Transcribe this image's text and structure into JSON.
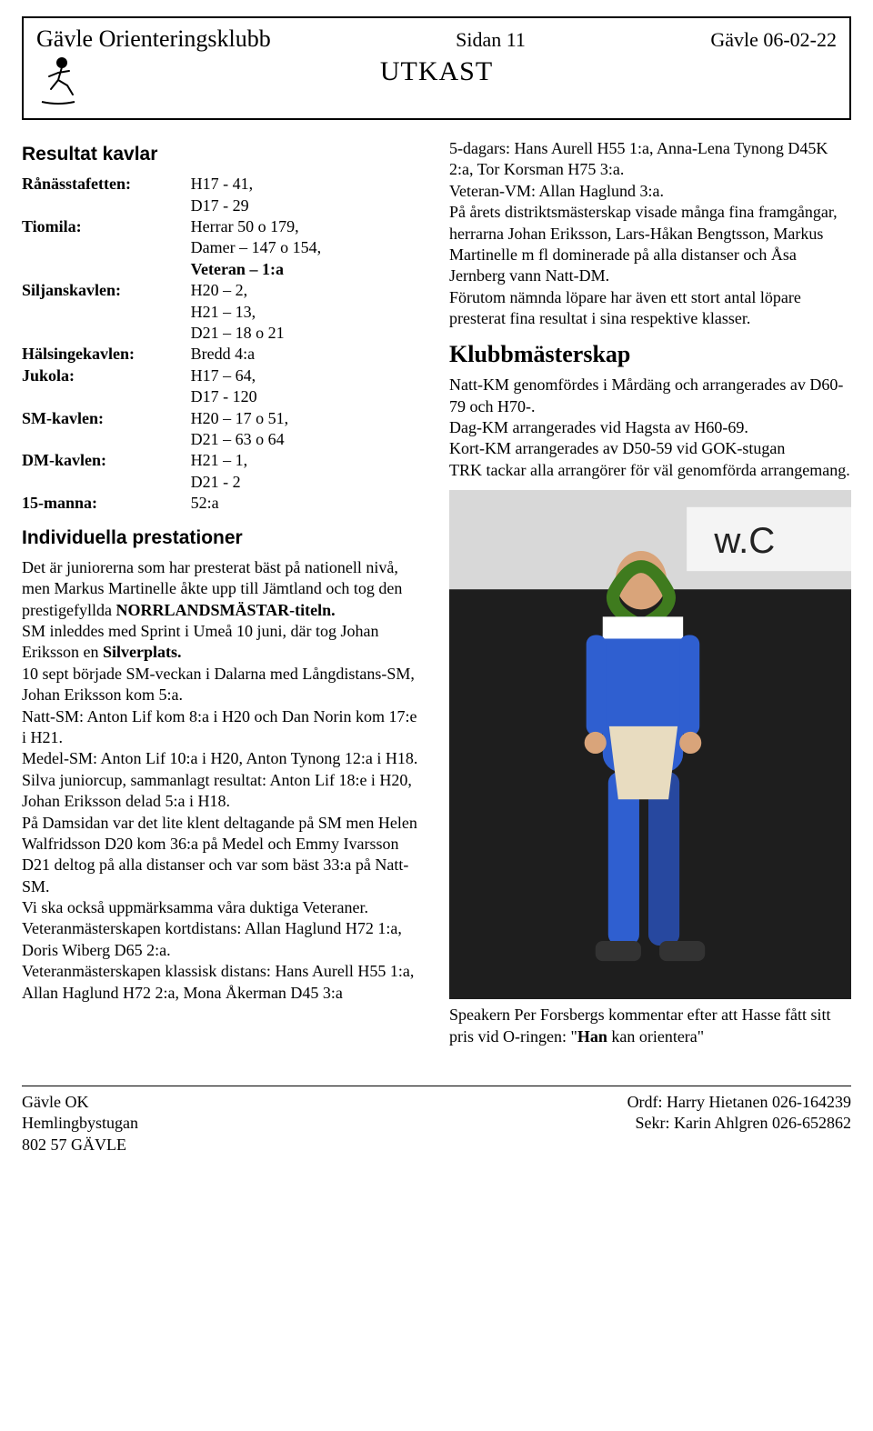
{
  "header": {
    "club": "Gävle Orienteringsklubb",
    "page": "Sidan 11",
    "date_place": "Gävle 06-02-22",
    "title": "UTKAST"
  },
  "left": {
    "section1_title": "Resultat kavlar",
    "rows": [
      {
        "label": "Rånässtafetten:",
        "lines": [
          "H17 - 41,",
          "D17 - 29"
        ]
      },
      {
        "label": "Tiomila:",
        "lines": [
          "Herrar 50 o 179,",
          "Damer – 147 o 154,",
          "Veteran – 1:a"
        ],
        "bold_lines": [
          2
        ]
      },
      {
        "label": "Siljanskavlen:",
        "lines": [
          "H20 – 2,",
          "H21 – 13,",
          "D21 – 18 o 21"
        ]
      },
      {
        "label": "Hälsingekavlen:",
        "lines": [
          "Bredd 4:a"
        ]
      },
      {
        "label": "Jukola:",
        "lines": [
          "H17 – 64,",
          "D17 - 120"
        ]
      },
      {
        "label": "SM-kavlen:",
        "lines": [
          "H20 – 17 o 51,",
          "D21 – 63 o 64"
        ]
      },
      {
        "label": "DM-kavlen:",
        "lines": [
          "H21 – 1,",
          "D21 - 2"
        ]
      },
      {
        "label": "15-manna:",
        "lines": [
          "52:a"
        ]
      }
    ],
    "section2_title": "Individuella prestationer",
    "body": [
      {
        "t": "Det är juniorerna som har presterat bäst på nationell nivå, men Markus Martinelle åkte upp till Jämtland och tog den prestigefyllda "
      },
      {
        "t": "NORRLANDSMÄSTAR-titeln.",
        "b": true,
        "inline": true
      },
      {
        "br": true
      },
      {
        "t": "SM inleddes med Sprint i Umeå 10 juni, där tog Johan Eriksson en "
      },
      {
        "t": "Silverplats.",
        "b": true,
        "inline": true
      },
      {
        "br": true
      },
      {
        "t": "10 sept började SM-veckan i Dalarna med Långdistans-SM, Johan Eriksson kom 5:a."
      },
      {
        "br": true
      },
      {
        "t": "Natt-SM: Anton Lif kom 8:a i H20 och Dan Norin kom 17:e i H21."
      },
      {
        "br": true
      },
      {
        "t": "Medel-SM: Anton Lif 10:a i H20, Anton Tynong 12:a i H18."
      },
      {
        "br": true
      },
      {
        "t": "Silva juniorcup, sammanlagt resultat: Anton Lif 18:e i H20,"
      },
      {
        "br": true
      },
      {
        "t": "Johan Eriksson delad 5:a i H18."
      },
      {
        "br": true
      },
      {
        "t": "På Damsidan var det lite klent deltagande på SM men Helen Walfridsson D20 kom 36:a på Medel och Emmy Ivarsson D21 deltog på alla distanser och var som bäst 33:a på Natt-SM."
      },
      {
        "br": true
      },
      {
        "t": "Vi ska också uppmärksamma våra duktiga Veteraner."
      },
      {
        "br": true
      },
      {
        "t": "Veteranmästerskapen kortdistans: Allan Haglund H72 1:a, Doris Wiberg D65 2:a."
      },
      {
        "br": true
      },
      {
        "t": "Veteranmästerskapen klassisk distans: Hans Aurell H55 1:a, Allan Haglund H72 2:a, Mona Åkerman D45 3:a"
      }
    ]
  },
  "right": {
    "intro": [
      "5-dagars: Hans Aurell H55 1:a, Anna-Lena Tynong D45K 2:a, Tor Korsman H75 3:a.",
      "Veteran-VM: Allan Haglund 3:a.",
      "På årets distriktsmästerskap visade många fina framgångar, herrarna Johan Eriksson, Lars-Håkan Bengtsson, Markus Martinelle m fl dominerade på alla distanser och Åsa Jernberg vann Natt-DM.",
      "Förutom nämnda löpare har även ett stort antal löpare presterat fina resultat i sina respektive klasser."
    ],
    "sub_title": "Klubbmästerskap",
    "body": [
      "Natt-KM genomfördes i Mårdäng och arrangerades av D60-79 och H70-.",
      "Dag-KM arrangerades vid Hagsta av H60-69.",
      "Kort-KM arrangerades av D50-59 vid GOK-stugan",
      "TRK tackar alla arrangörer för väl genomförda arrangemang."
    ],
    "caption_pre": "Speakern Per Forsbergs kommentar efter att Hasse fått sitt pris vid O-ringen: \"",
    "caption_bold": "Han",
    "caption_post": " kan orientera\""
  },
  "footer": {
    "l1": "Gävle OK",
    "l2": "Hemlingbystugan",
    "l3": "802 57 GÄVLE",
    "r1": "Ordf: Harry Hietanen 026-164239",
    "r2": "Sekr: Karin Ahlgren 026-652862"
  },
  "colors": {
    "text": "#000000",
    "bg": "#ffffff",
    "photo_bg": "#2a2a2a",
    "runner_blue": "#2f5fd0",
    "skin": "#d9a47a",
    "wreath": "#3f7b1e"
  }
}
